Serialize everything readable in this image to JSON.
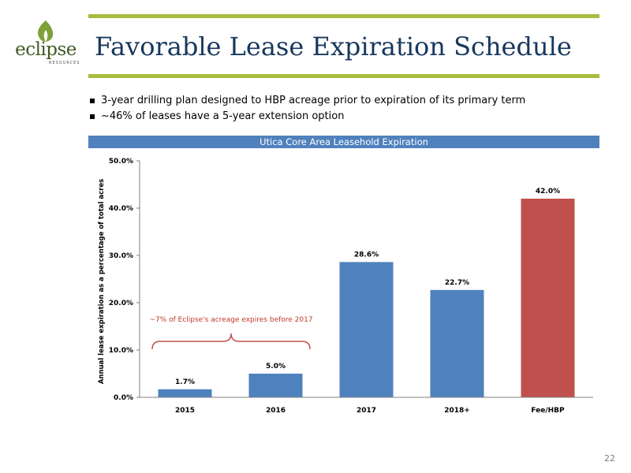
{
  "logo": {
    "text": "eclipse",
    "subtext": "RESOURCES"
  },
  "title": "Favorable Lease Expiration Schedule",
  "bullets": [
    "3-year drilling plan designed to HBP acreage prior to expiration of its primary term",
    "~46% of leases have a 5-year extension option"
  ],
  "page_number": "22",
  "colors": {
    "accent": "#a6bd3e",
    "title": "#17375e",
    "header": "#4f81bd",
    "bar_blue": "#4f81bd",
    "bar_red": "#c0504d",
    "annotation": "#c0392b"
  },
  "chart_data": {
    "type": "bar",
    "title": "Utica Core Area Leasehold Expiration",
    "xlabel": "",
    "ylabel": "Annual lease expiration as a percentage of total acres",
    "categories": [
      "2015",
      "2016",
      "2017",
      "2018+",
      "Fee/HBP"
    ],
    "values": [
      1.7,
      5.0,
      28.6,
      22.7,
      42.0
    ],
    "data_labels": [
      "1.7%",
      "5.0%",
      "28.6%",
      "22.7%",
      "42.0%"
    ],
    "bar_colors": [
      "#4f81bd",
      "#4f81bd",
      "#4f81bd",
      "#4f81bd",
      "#c0504d"
    ],
    "ylim": [
      0,
      50
    ],
    "yticks": [
      0,
      10,
      20,
      30,
      40,
      50
    ],
    "ytick_labels": [
      "0.0%",
      "10.0%",
      "20.0%",
      "30.0%",
      "40.0%",
      "50.0%"
    ],
    "grid": false,
    "annotation": "~7% of Eclipse's acreage expires before 2017"
  }
}
